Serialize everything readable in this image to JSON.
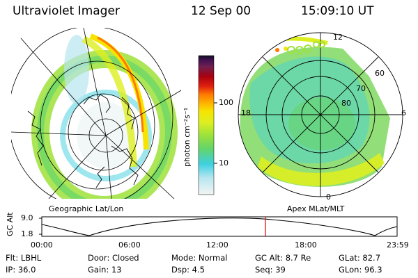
{
  "header": {
    "instrument": "Ultraviolet Imager",
    "date": "12 Sep 00",
    "time": "15:09:10 UT"
  },
  "left_panel": {
    "label": "Geographic Lat/Lon"
  },
  "right_panel": {
    "label": "Apex MLat/MLT",
    "mlt_labels": [
      "12",
      "18",
      "6",
      "0"
    ],
    "lat_labels": [
      "60",
      "70",
      "80"
    ]
  },
  "colorbar": {
    "unit_label": "photon cm⁻²s⁻¹",
    "ticks": [
      "100",
      "10"
    ],
    "colors": [
      "#f4f4f4",
      "#b8e6f0",
      "#3ed0e0",
      "#64d46a",
      "#9ee23a",
      "#ddef20",
      "#f6e400",
      "#ffb000",
      "#ff7a00",
      "#e02010",
      "#a80010",
      "#702050",
      "#401050",
      "#101020"
    ]
  },
  "timeline": {
    "axis_label": "GC Alt",
    "y_ticks": [
      "9.0",
      "1.8"
    ],
    "x_ticks": [
      "00:00",
      "06:00",
      "12:00",
      "18:00",
      "23:59"
    ],
    "current_time_marker": "15:09:10"
  },
  "info": {
    "row1": [
      "Flt: LBHL",
      "Door: Closed",
      "Mode:  Normal",
      "GC Alt: 8.7 Re",
      "GLat:  82.7"
    ],
    "row2": [
      "IP: 36.0",
      "Gain: 13",
      "Dsp:     4.5",
      "Seq: 39",
      "GLon:  96.3"
    ]
  },
  "colors": {
    "marker": "#e00000",
    "grid": "#000000"
  }
}
